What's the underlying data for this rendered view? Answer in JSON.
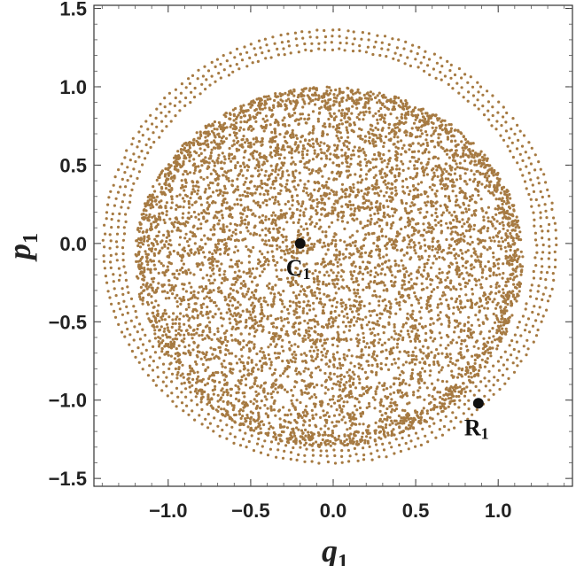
{
  "chart_data": {
    "type": "scatter",
    "title": "",
    "xlabel": {
      "base": "q",
      "sub": "1"
    },
    "ylabel": {
      "base": "p",
      "sub": "1"
    },
    "xlim": [
      -1.45,
      1.45
    ],
    "ylim": [
      -1.55,
      1.52
    ],
    "x_ticks": [
      -1.0,
      -0.5,
      0.0,
      0.5,
      1.0
    ],
    "x_tick_labels": [
      "−1.0",
      "−0.5",
      "0.0",
      "0.5",
      "1.0"
    ],
    "y_ticks": [
      1.5,
      1.0,
      0.5,
      0.0,
      -0.5,
      -1.0,
      -1.5
    ],
    "y_tick_labels": [
      "1.5",
      "1.0",
      "0.5",
      "0.0",
      "−0.5",
      "−1.0",
      "−1.5"
    ],
    "grid": false,
    "point_color": "#a67a42",
    "marker_color": "#111111",
    "series": [
      {
        "region": "chaotic-disk",
        "center": [
          -0.02,
          -0.08
        ],
        "radius_q": [
          -1.18,
          1.17
        ],
        "radius_p": [
          -1.22,
          1.08
        ],
        "approx_points": 6500
      },
      {
        "region": "outer-rings",
        "center": [
          -0.02,
          -0.02
        ],
        "rings": [
          {
            "rq": 1.25,
            "rp": 1.26
          },
          {
            "rq": 1.29,
            "rp": 1.3
          },
          {
            "rq": 1.33,
            "rp": 1.34
          },
          {
            "rq": 1.37,
            "rp": 1.38
          }
        ]
      }
    ],
    "annotations": [
      {
        "label": "C",
        "sub": "1",
        "x": -0.2,
        "y": 0.0
      },
      {
        "label": "R",
        "sub": "1",
        "x": 0.88,
        "y": -1.02
      }
    ]
  }
}
